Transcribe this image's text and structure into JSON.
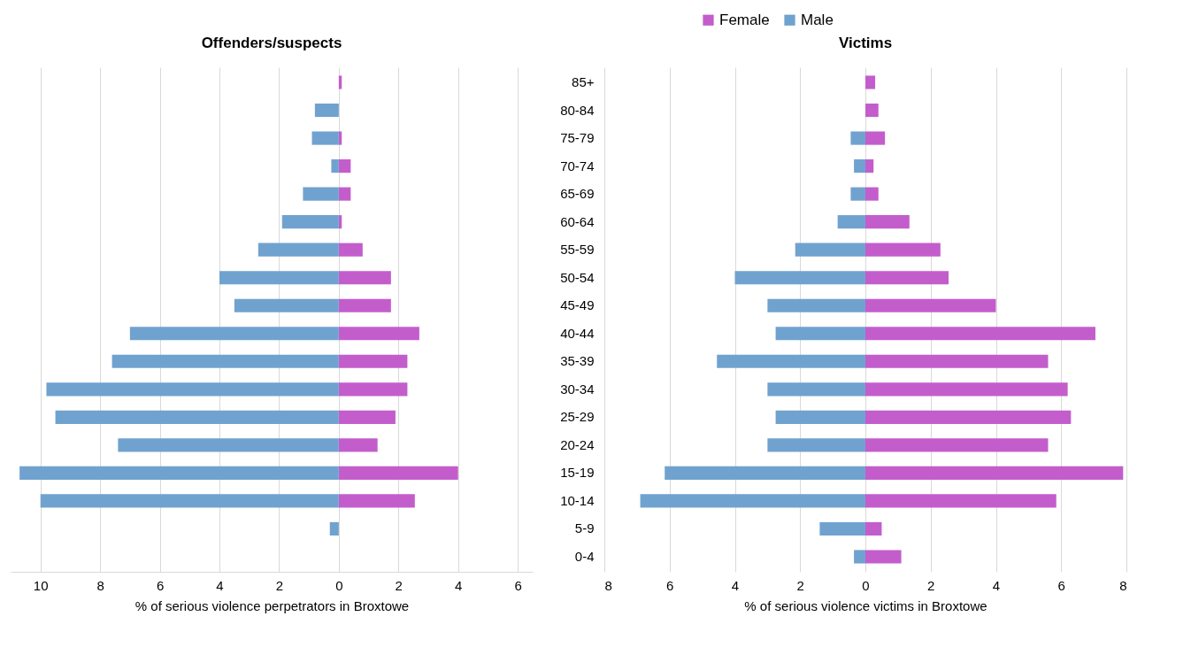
{
  "chart_data": [
    {
      "type": "bar",
      "orientation": "horizontal",
      "stacked": true,
      "title": "Offenders/suspects",
      "xlabel": "% of serious violence perpetrators in Broxtowe",
      "categories": [
        null,
        null,
        null,
        null,
        null,
        null,
        null,
        null,
        null,
        null,
        null,
        null,
        null,
        null,
        null,
        null,
        null,
        null
      ],
      "series": [
        {
          "name": "Female",
          "color": "#c35dcc",
          "values": [
            0.1,
            0,
            0.1,
            0.4,
            0.4,
            0.1,
            0.8,
            1.75,
            1.75,
            2.7,
            2.3,
            2.3,
            1.9,
            1.3,
            4.0,
            2.55,
            0,
            0
          ]
        },
        {
          "name": "Male",
          "color": "#70a2cf",
          "values": [
            0,
            -0.8,
            -0.9,
            -0.25,
            -1.2,
            -1.9,
            -2.7,
            -4.0,
            -3.5,
            -7.0,
            -7.6,
            -9.8,
            -9.5,
            -7.4,
            -10.7,
            -10.0,
            -0.3,
            0
          ]
        }
      ],
      "xlim": [
        -11,
        6.5
      ],
      "xticks": [
        {
          "value": -10,
          "label": "10"
        },
        {
          "value": -8,
          "label": "8"
        },
        {
          "value": -6,
          "label": "6"
        },
        {
          "value": -4,
          "label": "4"
        },
        {
          "value": -2,
          "label": "2"
        },
        0,
        2,
        4,
        6
      ],
      "grid": "x",
      "legend": "top",
      "tick_labels": "x"
    },
    {
      "type": "bar",
      "orientation": "horizontal",
      "stacked": true,
      "title": "Victims",
      "xlabel": "% of serious violence victims in Broxtowe",
      "categories": [
        "85+",
        "80-84",
        "75-79",
        "70-74",
        "65-69",
        "60-64",
        "55-59",
        "50-54",
        "45-49",
        "40-44",
        "35-39",
        "30-34",
        "25-29",
        "20-24",
        "15-19",
        "10-14",
        "5-9",
        "0-4"
      ],
      "series": [
        {
          "name": "Female",
          "color": "#c35dcc",
          "values": [
            0.3,
            0.4,
            0.6,
            0.25,
            0.4,
            1.35,
            2.3,
            2.55,
            4.0,
            7.05,
            5.6,
            6.2,
            6.3,
            5.6,
            7.9,
            5.85,
            0.5,
            1.1
          ]
        },
        {
          "name": "Male",
          "color": "#70a2cf",
          "values": [
            0,
            0,
            -0.45,
            -0.35,
            -0.45,
            -0.85,
            -2.15,
            -4.0,
            -3.0,
            -2.75,
            -4.55,
            -3.0,
            -2.75,
            -3.0,
            -6.15,
            -6.9,
            -1.4,
            -0.35
          ]
        }
      ],
      "xlim": [
        -8,
        8
      ],
      "xticks": [
        {
          "value": -8,
          "label": "8"
        },
        {
          "value": -6,
          "label": "6"
        },
        {
          "value": -4,
          "label": "4"
        },
        {
          "value": -2,
          "label": "2"
        },
        0,
        2,
        4,
        6,
        8
      ],
      "grid": "x",
      "legend": "top"
    }
  ]
}
